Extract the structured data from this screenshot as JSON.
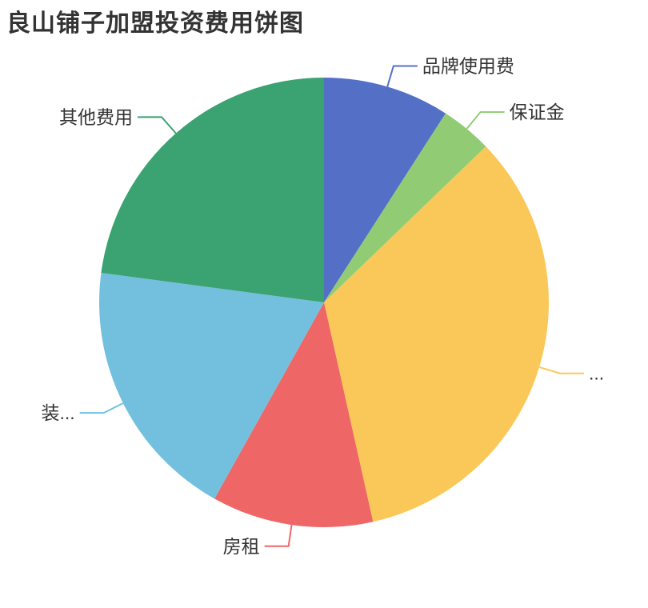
{
  "page": {
    "background": "#ffffff",
    "label_text_color": "#333333"
  },
  "chart_data": {
    "type": "pie",
    "title": "良山铺子加盟投资费用饼图",
    "legend_position": "none",
    "start_angle_deg": 90,
    "direction": "clockwise",
    "values_are": "estimated percent of whole (no numeric labels shown in image)",
    "slices": [
      {
        "label": "品牌使用费",
        "percent": 9.1,
        "color": "#5470c6",
        "label_side": "right"
      },
      {
        "label": "保证金",
        "percent": 3.7,
        "color": "#91cc75",
        "label_side": "right"
      },
      {
        "label": "...",
        "percent": 33.7,
        "color": "#fac858",
        "label_side": "right"
      },
      {
        "label": "房租",
        "percent": 11.6,
        "color": "#ee6666",
        "label_side": "left"
      },
      {
        "label": "装...",
        "percent": 19.0,
        "color": "#73c0de",
        "label_side": "left"
      },
      {
        "label": "其他费用",
        "percent": 22.9,
        "color": "#3ba272",
        "label_side": "left"
      }
    ]
  }
}
